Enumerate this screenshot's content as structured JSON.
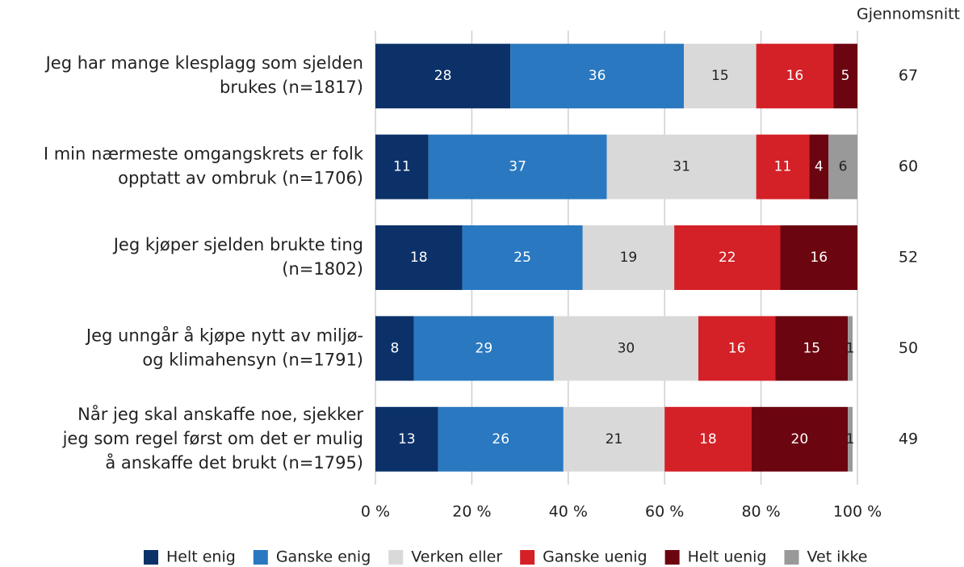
{
  "chart_data": {
    "type": "stacked-bar-horizontal",
    "average_title": "Gjennomsnitt",
    "categories": [
      "Jeg har mange klesplagg som sjelden\nbrukes (n=1817)",
      "I min nærmeste omgangskrets er folk\nopptatt av ombruk (n=1706)",
      "Jeg kjøper sjelden brukte ting\n(n=1802)",
      "Jeg unngår å kjøpe nytt av miljø-\nog klimahensyn (n=1791)",
      "Når jeg skal anskaffe noe, sjekker\njeg som regel først om det er mulig\nå anskaffe det brukt (n=1795)"
    ],
    "series": [
      {
        "name": "Helt enig",
        "color": "#0b3168",
        "values": [
          28,
          11,
          18,
          8,
          13
        ]
      },
      {
        "name": "Ganske enig",
        "color": "#2a78c0",
        "values": [
          36,
          37,
          25,
          29,
          26
        ]
      },
      {
        "name": "Verken eller",
        "color": "#d9d9d9",
        "values": [
          15,
          31,
          19,
          30,
          21
        ]
      },
      {
        "name": "Ganske uenig",
        "color": "#d42027",
        "values": [
          16,
          11,
          22,
          16,
          18
        ]
      },
      {
        "name": "Helt uenig",
        "color": "#6b0510",
        "values": [
          5,
          4,
          16,
          15,
          20
        ]
      },
      {
        "name": "Vet ikke",
        "color": "#999999",
        "values": [
          0,
          6,
          0,
          1,
          1
        ]
      }
    ],
    "averages": [
      67,
      60,
      52,
      50,
      49
    ],
    "xlim": [
      0,
      100
    ],
    "xticks": [
      {
        "value": 0,
        "label": "0 %"
      },
      {
        "value": 20,
        "label": "20 %"
      },
      {
        "value": 40,
        "label": "40 %"
      },
      {
        "value": 60,
        "label": "60 %"
      },
      {
        "value": 80,
        "label": "80 %"
      },
      {
        "value": 100,
        "label": "100 %"
      }
    ],
    "grid": true,
    "legend": "bottom"
  }
}
